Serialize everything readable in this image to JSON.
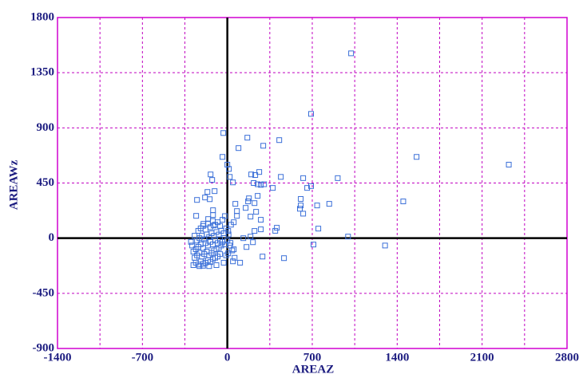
{
  "chart_data": {
    "type": "scatter",
    "xlabel": "AREAZ",
    "ylabel": "AREAWz",
    "xlim": [
      -1400,
      2800
    ],
    "ylim": [
      -900,
      1800
    ],
    "xticks": [
      -1400,
      -700,
      0,
      700,
      1400,
      2100,
      2800
    ],
    "yticks": [
      -900,
      -450,
      0,
      450,
      900,
      1350,
      1800
    ],
    "xminor_grid": [
      -1050,
      -350,
      350,
      1050,
      1750,
      2450
    ],
    "grid": true,
    "grid_color": "#c000c0",
    "frame_color": "#d000d0",
    "zero_lines": true,
    "series": [
      {
        "color": "#3a6fd8",
        "x": [
          1020,
          690,
          1560,
          2320,
          1450,
          1300,
          995,
          710,
          910,
          840,
          750,
          740,
          625,
          658,
          690,
          605,
          605,
          625,
          598,
          467,
          441,
          428,
          408,
          290,
          375,
          395,
          296,
          165,
          92,
          263,
          230,
          197,
          217,
          250,
          276,
          303,
          250,
          178,
          171,
          151,
          224,
          237,
          191,
          276,
          276,
          224,
          132,
          105,
          158,
          211,
          191,
          53,
          79,
          79,
          66,
          46,
          13,
          20,
          -33,
          -40,
          0,
          -138,
          -125,
          -164,
          -184,
          -250,
          -145,
          -105,
          -118,
          -118,
          -112,
          -158,
          -257,
          -197,
          7,
          26,
          53,
          46,
          7,
          -280,
          -260,
          -240,
          -220,
          -200,
          -180,
          -160,
          -140,
          -120,
          -100,
          -80,
          -60,
          -270,
          -250,
          -230,
          -210,
          -190,
          -170,
          -150,
          -130,
          -110,
          -90,
          -70,
          -50,
          -260,
          -240,
          -220,
          -200,
          -180,
          -160,
          -140,
          -120,
          -100,
          -80,
          -60,
          -40,
          -20,
          0,
          20,
          -250,
          -230,
          -210,
          -190,
          -170,
          -150,
          -130,
          -110,
          -90,
          -70,
          -50,
          -30,
          -10,
          10,
          -240,
          -220,
          -200,
          -180,
          -160,
          -140,
          -120,
          -100,
          -80,
          -60,
          -40,
          -20,
          30,
          -280,
          -290,
          -300,
          -270,
          -230,
          -150,
          -90,
          -30,
          -10,
          40,
          60,
          -200
        ],
        "values": [
          1508,
          1014,
          663,
          600,
          300,
          -60,
          13,
          -52,
          490,
          280,
          78,
          267,
          490,
          410,
          425,
          320,
          267,
          200,
          240,
          -163,
          500,
          800,
          85,
          -150,
          410,
          60,
          754,
          820,
          735,
          540,
          515,
          520,
          450,
          440,
          435,
          440,
          345,
          325,
          300,
          247,
          286,
          215,
          176,
          150,
          72,
          59,
          0,
          -200,
          -72,
          -33,
          13,
          130,
          182,
          221,
          280,
          455,
          565,
          500,
          858,
          663,
          600,
          520,
          475,
          377,
          332,
          312,
          318,
          384,
          228,
          189,
          104,
          156,
          182,
          117,
          59,
          -39,
          -91,
          -189,
          -124,
          -220,
          -200,
          -215,
          -190,
          -210,
          -200,
          -180,
          -195,
          -170,
          -160,
          -150,
          -130,
          -160,
          -140,
          -120,
          -150,
          -130,
          -110,
          -140,
          -120,
          -100,
          -90,
          -80,
          -60,
          -90,
          -70,
          -50,
          -80,
          -40,
          -60,
          -30,
          -50,
          -20,
          -40,
          -10,
          -30,
          -50,
          -20,
          -60,
          -20,
          0,
          20,
          -10,
          30,
          10,
          40,
          20,
          50,
          30,
          60,
          40,
          80,
          30,
          60,
          80,
          100,
          70,
          120,
          90,
          140,
          110,
          130,
          100,
          150,
          180,
          110,
          -110,
          -60,
          -30,
          20,
          -228,
          -228,
          -220,
          -200,
          -140,
          -100,
          -160,
          -225
        ]
      }
    ]
  }
}
